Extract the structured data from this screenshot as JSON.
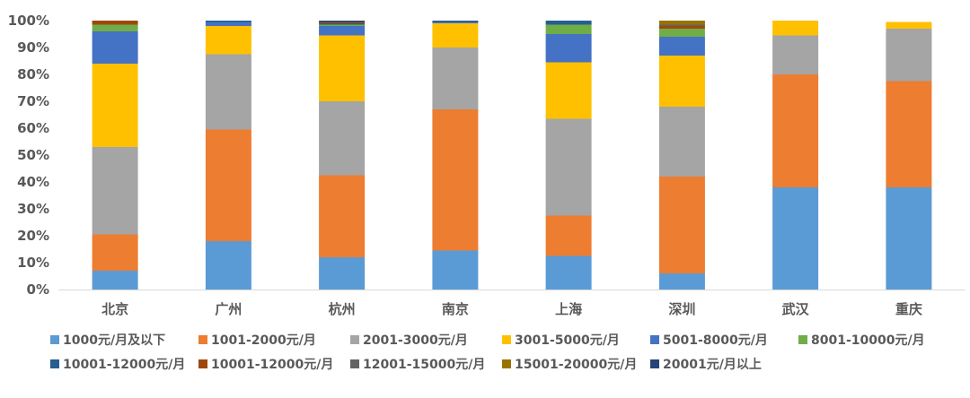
{
  "chart_data": {
    "type": "bar",
    "stacked": true,
    "percent": true,
    "categories": [
      "北京",
      "广州",
      "杭州",
      "南京",
      "上海",
      "深圳",
      "武汉",
      "重庆"
    ],
    "y_ticks": [
      "0%",
      "10%",
      "20%",
      "30%",
      "40%",
      "50%",
      "60%",
      "70%",
      "80%",
      "90%",
      "100%"
    ],
    "ylim": [
      0,
      100
    ],
    "grid": false,
    "legend_position": "bottom",
    "series": [
      {
        "name": "1000元/月及以下",
        "color": "#5b9bd5",
        "values": [
          7,
          18,
          12,
          14.5,
          12.5,
          6,
          38,
          38
        ]
      },
      {
        "name": "1001-2000元/月",
        "color": "#ed7d31",
        "values": [
          13.5,
          41.5,
          30.5,
          52.5,
          15,
          36,
          42,
          39.5
        ]
      },
      {
        "name": "2001-3000元/月",
        "color": "#a5a5a5",
        "values": [
          32.5,
          28,
          27.5,
          23,
          36,
          26,
          14.5,
          19.5
        ]
      },
      {
        "name": "3001-5000元/月",
        "color": "#ffc000",
        "values": [
          31,
          10.5,
          24.5,
          9,
          21,
          19,
          5.5,
          2.5
        ]
      },
      {
        "name": "5001-8000元/月",
        "color": "#4472c4",
        "values": [
          12,
          1.5,
          3.5,
          0.5,
          10.5,
          7,
          0,
          0
        ]
      },
      {
        "name": "8001-10000元/月",
        "color": "#70ad47",
        "values": [
          2.5,
          0,
          0.5,
          0,
          3.5,
          3,
          0,
          0
        ]
      },
      {
        "name": "10001-12000元/月",
        "color": "#255e91",
        "values": [
          0,
          0.5,
          0.5,
          0.5,
          1.5,
          0,
          0,
          0
        ]
      },
      {
        "name": "10001-12000元/月",
        "color": "#9e480e",
        "values": [
          1.5,
          0,
          0.5,
          0,
          0,
          1,
          0,
          0
        ]
      },
      {
        "name": "12001-15000元/月",
        "color": "#636363",
        "values": [
          0,
          0,
          0,
          0,
          0,
          0.5,
          0,
          0
        ]
      },
      {
        "name": "15001-20000元/月",
        "color": "#997300",
        "values": [
          0,
          0,
          0,
          0,
          0,
          1.5,
          0,
          0
        ]
      },
      {
        "name": "20001元/月以上",
        "color": "#264478",
        "values": [
          0,
          0,
          0.5,
          0,
          0,
          0,
          0,
          0
        ]
      }
    ]
  }
}
